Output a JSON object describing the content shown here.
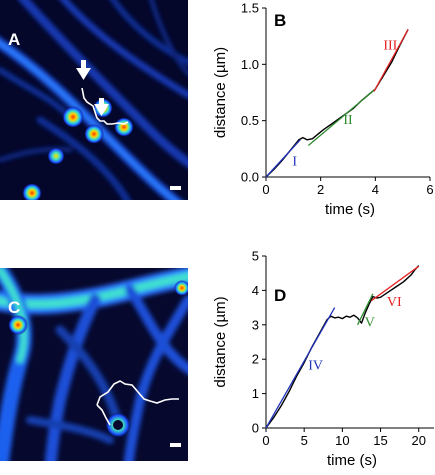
{
  "panels": {
    "a": {
      "letter": "A"
    },
    "b": {
      "letter": "B"
    },
    "c": {
      "letter": "C"
    },
    "d": {
      "letter": "D"
    }
  },
  "chart_data": [
    {
      "type": "line",
      "panel": "B",
      "xlabel": "time (s)",
      "ylabel": "distance (µm)",
      "xlim": [
        0,
        6
      ],
      "ylim": [
        0,
        1.5
      ],
      "xticks": [
        "0",
        "2",
        "4",
        "6"
      ],
      "yticks": [
        "0.0",
        "0.5",
        "1.0",
        "1.5"
      ],
      "series": [
        {
          "name": "trace",
          "color": "#000000",
          "x": [
            0,
            0.3,
            0.6,
            0.9,
            1.2,
            1.35,
            1.5,
            1.7,
            1.9,
            2.1,
            2.4,
            2.8,
            3.2,
            3.5,
            3.8,
            4.0,
            4.3,
            4.6,
            4.9,
            5.2
          ],
          "y": [
            0.0,
            0.07,
            0.15,
            0.24,
            0.33,
            0.35,
            0.33,
            0.34,
            0.38,
            0.42,
            0.47,
            0.54,
            0.61,
            0.68,
            0.74,
            0.78,
            0.9,
            1.02,
            1.17,
            1.31
          ]
        },
        {
          "name": "I",
          "color": "#2233bb",
          "x": [
            0,
            1.25
          ],
          "y": [
            0.0,
            0.33
          ]
        },
        {
          "name": "II",
          "color": "#2e8b2e",
          "x": [
            1.55,
            4.0
          ],
          "y": [
            0.28,
            0.78
          ]
        },
        {
          "name": "III",
          "color": "#e52222",
          "x": [
            3.95,
            5.2
          ],
          "y": [
            0.76,
            1.31
          ]
        }
      ],
      "annotations": [
        {
          "text": "I",
          "x": 1.05,
          "y": 0.1,
          "color": "#2233bb"
        },
        {
          "text": "II",
          "x": 3.0,
          "y": 0.47,
          "color": "#2e8b2e"
        },
        {
          "text": "III",
          "x": 4.55,
          "y": 1.13,
          "color": "#e52222"
        }
      ]
    },
    {
      "type": "line",
      "panel": "D",
      "xlabel": "time (s)",
      "ylabel": "distance (µm)",
      "xlim": [
        0,
        22
      ],
      "ylim": [
        0,
        5
      ],
      "xticks": [
        "0",
        "5",
        "10",
        "15",
        "20"
      ],
      "yticks": [
        "0",
        "1",
        "2",
        "3",
        "4",
        "5"
      ],
      "series": [
        {
          "name": "trace",
          "color": "#000000",
          "x": [
            0,
            1,
            2,
            3,
            4,
            5,
            6,
            7,
            8,
            8.5,
            9,
            9.5,
            10,
            10.5,
            11,
            11.5,
            12,
            12.5,
            13,
            13.5,
            14,
            14.5,
            15,
            16,
            17,
            18,
            19,
            19.5,
            20
          ],
          "y": [
            0.0,
            0.3,
            0.65,
            1.05,
            1.5,
            1.9,
            2.35,
            2.75,
            3.15,
            3.25,
            3.2,
            3.22,
            3.18,
            3.25,
            3.22,
            3.28,
            3.2,
            3.05,
            3.35,
            3.6,
            3.82,
            3.78,
            3.8,
            3.95,
            4.1,
            4.25,
            4.45,
            4.6,
            4.72
          ]
        },
        {
          "name": "IV",
          "color": "#2233bb",
          "x": [
            0,
            9.0
          ],
          "y": [
            0.0,
            3.5
          ]
        },
        {
          "name": "V",
          "color": "#2e8b2e",
          "x": [
            12.0,
            14.0
          ],
          "y": [
            3.0,
            3.9
          ]
        },
        {
          "name": "VI",
          "color": "#e52222",
          "x": [
            13.8,
            20.0
          ],
          "y": [
            3.7,
            4.7
          ]
        }
      ],
      "annotations": [
        {
          "text": "IV",
          "x": 6.5,
          "y": 1.7,
          "color": "#2233bb"
        },
        {
          "text": "V",
          "x": 13.6,
          "y": 2.95,
          "color": "#2e8b2e"
        },
        {
          "text": "VI",
          "x": 16.8,
          "y": 3.55,
          "color": "#e52222"
        }
      ]
    }
  ]
}
